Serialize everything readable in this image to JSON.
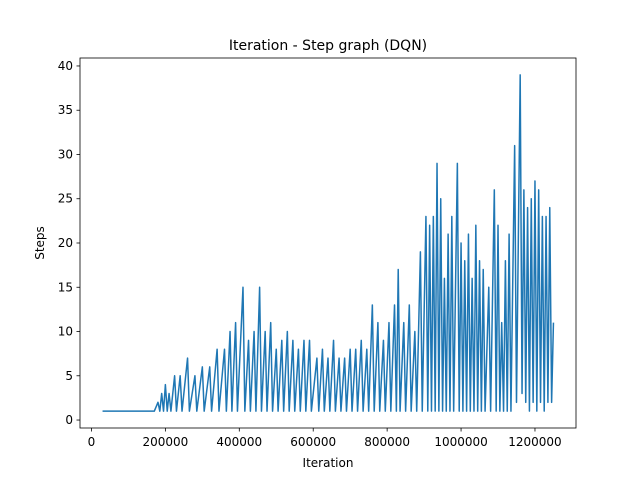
{
  "chart_data": {
    "type": "line",
    "title": "Iteration - Step graph (DQN)",
    "x_label": "Iteration",
    "y_label": "Steps",
    "x": [
      30000,
      170000,
      180000,
      185000,
      190000,
      195000,
      200000,
      205000,
      210000,
      215000,
      225000,
      230000,
      240000,
      245000,
      260000,
      265000,
      280000,
      285000,
      300000,
      305000,
      320000,
      325000,
      340000,
      345000,
      360000,
      365000,
      375000,
      380000,
      390000,
      395000,
      410000,
      415000,
      425000,
      430000,
      440000,
      445000,
      455000,
      460000,
      470000,
      475000,
      485000,
      490000,
      500000,
      505000,
      515000,
      520000,
      530000,
      535000,
      545000,
      550000,
      560000,
      565000,
      575000,
      580000,
      590000,
      595000,
      610000,
      615000,
      625000,
      630000,
      640000,
      645000,
      655000,
      660000,
      670000,
      675000,
      685000,
      690000,
      700000,
      705000,
      715000,
      720000,
      730000,
      735000,
      745000,
      750000,
      760000,
      765000,
      775000,
      780000,
      790000,
      795000,
      805000,
      810000,
      820000,
      825000,
      830000,
      835000,
      845000,
      850000,
      860000,
      865000,
      875000,
      880000,
      890000,
      895000,
      905000,
      910000,
      915000,
      920000,
      925000,
      930000,
      935000,
      940000,
      945000,
      950000,
      955000,
      960000,
      965000,
      970000,
      975000,
      980000,
      990000,
      995000,
      1000000,
      1005000,
      1010000,
      1015000,
      1020000,
      1025000,
      1030000,
      1035000,
      1040000,
      1045000,
      1050000,
      1055000,
      1060000,
      1065000,
      1075000,
      1080000,
      1090000,
      1095000,
      1100000,
      1105000,
      1110000,
      1115000,
      1120000,
      1125000,
      1130000,
      1135000,
      1145000,
      1150000,
      1160000,
      1165000,
      1170000,
      1175000,
      1180000,
      1185000,
      1190000,
      1195000,
      1200000,
      1205000,
      1210000,
      1215000,
      1220000,
      1225000,
      1230000,
      1235000,
      1240000,
      1245000,
      1250000
    ],
    "series": [
      {
        "color": "#1f77b4",
        "values": [
          1,
          1,
          2,
          1,
          3,
          1,
          4,
          1,
          3,
          1,
          5,
          1,
          5,
          1,
          7,
          1,
          5,
          1,
          6,
          1,
          6,
          1,
          8,
          1,
          8,
          1,
          10,
          1,
          11,
          1,
          15,
          1,
          9,
          1,
          10,
          1,
          15,
          1,
          10,
          1,
          11,
          1,
          8,
          1,
          9,
          1,
          10,
          1,
          9,
          1,
          8,
          1,
          9,
          1,
          9,
          1,
          7,
          1,
          8,
          1,
          7,
          1,
          9,
          1,
          7,
          1,
          7,
          1,
          8,
          1,
          8,
          1,
          9,
          1,
          8,
          1,
          13,
          1,
          11,
          1,
          9,
          1,
          11,
          1,
          13,
          1,
          17,
          1,
          11,
          1,
          13,
          1,
          10,
          1,
          19,
          1,
          23,
          1,
          22,
          1,
          23,
          1,
          29,
          1,
          25,
          1,
          16,
          1,
          21,
          1,
          23,
          1,
          29,
          1,
          20,
          1,
          18,
          1,
          21,
          1,
          16,
          1,
          22,
          1,
          18,
          1,
          17,
          1,
          15,
          1,
          26,
          1,
          22,
          1,
          11,
          1,
          18,
          1,
          21,
          1,
          31,
          2,
          39,
          3,
          26,
          2,
          24,
          1,
          25,
          2,
          27,
          1,
          26,
          2,
          23,
          1,
          23,
          2,
          24,
          2,
          11
        ]
      }
    ],
    "xlim": [
      -31000,
      1311000
    ],
    "ylim": [
      -0.9,
      40.9
    ],
    "xticks": [
      0,
      200000,
      400000,
      600000,
      800000,
      1000000,
      1200000
    ],
    "yticks": [
      0,
      5,
      10,
      15,
      20,
      25,
      30,
      35,
      40
    ],
    "grid": false
  }
}
